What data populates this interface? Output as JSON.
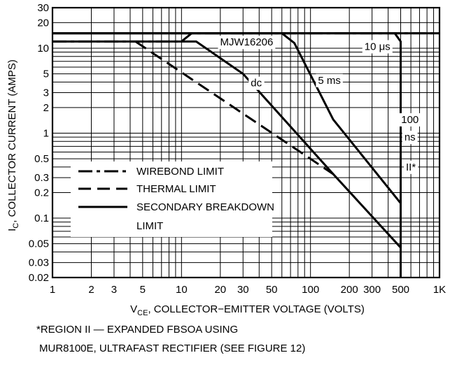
{
  "chart_data": {
    "type": "line",
    "x_scale": "log",
    "y_scale": "log",
    "xlim": [
      1,
      1000
    ],
    "ylim": [
      0.02,
      30
    ],
    "xlabel": "V",
    "xlabel_sub": "CE",
    "xlabel_rest": ", COLLECTOR−EMITTER VOLTAGE (VOLTS)",
    "ylabel": "I",
    "ylabel_sub": "C",
    "ylabel_rest": ", COLLECTOR CURRENT (AMPS)",
    "x_ticks": [
      {
        "value": 1,
        "label": "1"
      },
      {
        "value": 2,
        "label": "2"
      },
      {
        "value": 3,
        "label": "3"
      },
      {
        "value": 5,
        "label": "5"
      },
      {
        "value": 10,
        "label": "10"
      },
      {
        "value": 20,
        "label": "20"
      },
      {
        "value": 30,
        "label": "30"
      },
      {
        "value": 50,
        "label": "50"
      },
      {
        "value": 100,
        "label": "100"
      },
      {
        "value": 200,
        "label": "200"
      },
      {
        "value": 300,
        "label": "300"
      },
      {
        "value": 500,
        "label": "500"
      },
      {
        "value": 1000,
        "label": "1K"
      }
    ],
    "y_ticks": [
      {
        "value": 30,
        "label": "30"
      },
      {
        "value": 20,
        "label": "20"
      },
      {
        "value": 10,
        "label": "10"
      },
      {
        "value": 5,
        "label": "5"
      },
      {
        "value": 3,
        "label": "3"
      },
      {
        "value": 2,
        "label": "2"
      },
      {
        "value": 1,
        "label": "1"
      },
      {
        "value": 0.5,
        "label": "0.5"
      },
      {
        "value": 0.3,
        "label": "0.3"
      },
      {
        "value": 0.2,
        "label": "0.2"
      },
      {
        "value": 0.1,
        "label": "0.1"
      },
      {
        "value": 0.05,
        "label": "0.05"
      },
      {
        "value": 0.03,
        "label": "0.03"
      },
      {
        "value": 0.02,
        "label": "0.02"
      }
    ],
    "series": [
      {
        "style": "dashdot",
        "points": [
          [
            1,
            12
          ],
          [
            10,
            12
          ],
          [
            12,
            15
          ],
          [
            1000,
            15
          ]
        ]
      },
      {
        "style": "dash",
        "points": [
          [
            4.4,
            12
          ],
          [
            150,
            0.33
          ]
        ]
      },
      {
        "style": "solid",
        "points": [
          [
            1,
            12
          ],
          [
            13,
            12
          ],
          [
            30,
            5
          ],
          [
            150,
            0.33
          ],
          [
            500,
            0.045
          ]
        ]
      },
      {
        "style": "solid",
        "points": [
          [
            1,
            15
          ],
          [
            60,
            15
          ],
          [
            75,
            11.5
          ],
          [
            150,
            1.45
          ],
          [
            500,
            0.15
          ]
        ]
      },
      {
        "style": "solid",
        "points": [
          [
            1,
            15
          ],
          [
            450,
            15
          ],
          [
            500,
            12
          ],
          [
            500,
            0.02
          ]
        ]
      },
      {
        "style": "solid",
        "points": [
          [
            1,
            15
          ],
          [
            1000,
            15
          ]
        ]
      }
    ],
    "annotations": [
      {
        "text": "MJW16206",
        "x": 32,
        "y": 11.8
      },
      {
        "text": "dc",
        "x": 38,
        "y": 3.9
      },
      {
        "text": "10 μs",
        "x": 330,
        "y": 10.5
      },
      {
        "text": "5 ms",
        "x": 140,
        "y": 4.2
      },
      {
        "text": "100",
        "x": 590,
        "y": 1.45
      },
      {
        "text": "ns",
        "x": 590,
        "y": 0.9
      },
      {
        "text": "II*",
        "x": 600,
        "y": 0.4
      }
    ],
    "legend": {
      "position": "bottom-left",
      "entries": [
        {
          "style": "dashdot",
          "label": "WIREBOND LIMIT"
        },
        {
          "style": "dash",
          "label": "THERMAL LIMIT"
        },
        {
          "style": "solid",
          "label": "SECONDARY BREAKDOWN"
        },
        {
          "style": "none",
          "label": "LIMIT"
        }
      ]
    },
    "grid": true
  },
  "footnote": {
    "line1": "*REGION II — EXPANDED FBSOA USING",
    "line2": "MUR8100E, ULTRAFAST RECTIFIER (SEE FIGURE 12)"
  }
}
